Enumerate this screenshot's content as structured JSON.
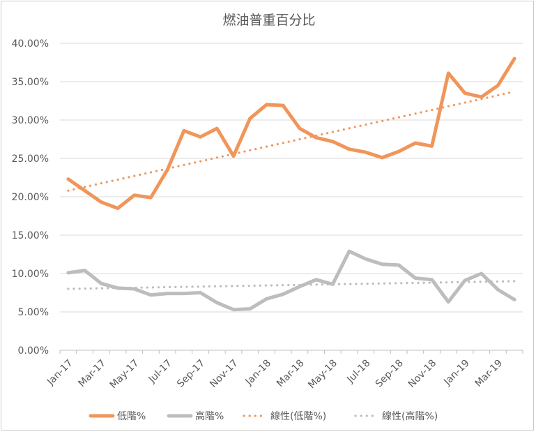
{
  "chart_data": {
    "type": "line",
    "title": "燃油普重百分比",
    "xlabel": "",
    "ylabel": "",
    "ylim": [
      0,
      0.4
    ],
    "yticks": [
      "0.00%",
      "5.00%",
      "10.00%",
      "15.00%",
      "20.00%",
      "25.00%",
      "30.00%",
      "35.00%",
      "40.00%"
    ],
    "x": [
      "Jan-17",
      "Feb-17",
      "Mar-17",
      "Apr-17",
      "May-17",
      "Jun-17",
      "Jul-17",
      "Aug-17",
      "Sep-17",
      "Oct-17",
      "Nov-17",
      "Dec-17",
      "Jan-18",
      "Feb-18",
      "Mar-18",
      "Apr-18",
      "May-18",
      "Jun-18",
      "Jul-18",
      "Aug-18",
      "Sep-18",
      "Oct-18",
      "Nov-18",
      "Dec-18",
      "Jan-19",
      "Feb-19",
      "Mar-19",
      "Apr-19"
    ],
    "xtick_labels": [
      "Jan-17",
      "Mar-17",
      "May-17",
      "Jul-17",
      "Sep-17",
      "Nov-17",
      "Jan-18",
      "Mar-18",
      "May-18",
      "Jul-18",
      "Sep-18",
      "Nov-18",
      "Jan-19",
      "Mar-19"
    ],
    "series": [
      {
        "name": "低階%",
        "color": "#F0965A",
        "values": [
          0.223,
          0.208,
          0.193,
          0.185,
          0.202,
          0.199,
          0.235,
          0.286,
          0.278,
          0.289,
          0.253,
          0.302,
          0.32,
          0.319,
          0.289,
          0.277,
          0.272,
          0.262,
          0.258,
          0.251,
          0.259,
          0.27,
          0.266,
          0.361,
          0.335,
          0.33,
          0.345,
          0.38
        ]
      },
      {
        "name": "高階%",
        "color": "#BDBDBD",
        "values": [
          0.101,
          0.104,
          0.087,
          0.081,
          0.08,
          0.072,
          0.074,
          0.074,
          0.075,
          0.062,
          0.053,
          0.054,
          0.067,
          0.073,
          0.083,
          0.092,
          0.086,
          0.129,
          0.119,
          0.112,
          0.111,
          0.094,
          0.092,
          0.063,
          0.091,
          0.1,
          0.079,
          0.066
        ]
      }
    ],
    "trendlines": [
      {
        "name": "線性(低階%)",
        "color": "#F0965A",
        "start": 0.208,
        "end": 0.337
      },
      {
        "name": "線性(高階%)",
        "color": "#BDBDBD",
        "start": 0.08,
        "end": 0.09
      }
    ],
    "legend_position": "bottom"
  }
}
